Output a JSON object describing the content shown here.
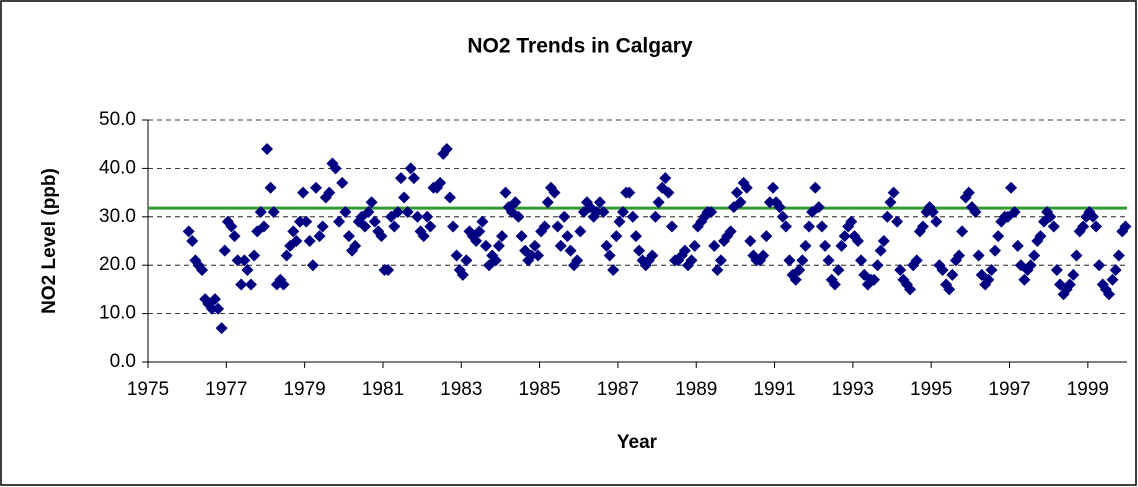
{
  "chart_data": {
    "type": "scatter",
    "title": "NO2 Trends in Calgary",
    "x_label": "Year",
    "y_label": "NO2 Level (ppb)",
    "series": [
      {
        "color": "#000080",
        "x": [
          1976.04,
          1976.13,
          1976.21,
          1976.29,
          1976.38,
          1976.46,
          1976.54,
          1976.63,
          1976.71,
          1976.79,
          1976.88,
          1976.96,
          1977.04,
          1977.13,
          1977.21,
          1977.29,
          1977.38,
          1977.46,
          1977.54,
          1977.63,
          1977.71,
          1977.79,
          1977.88,
          1977.96,
          1978.04,
          1978.13,
          1978.21,
          1978.29,
          1978.38,
          1978.46,
          1978.54,
          1978.63,
          1978.71,
          1978.79,
          1978.88,
          1978.96,
          1979.04,
          1979.13,
          1979.21,
          1979.29,
          1979.38,
          1979.46,
          1979.54,
          1979.63,
          1979.71,
          1979.79,
          1979.88,
          1979.96,
          1980.04,
          1980.13,
          1980.21,
          1980.29,
          1980.38,
          1980.46,
          1980.54,
          1980.63,
          1980.71,
          1980.79,
          1980.88,
          1980.96,
          1981.04,
          1981.13,
          1981.21,
          1981.29,
          1981.38,
          1981.46,
          1981.54,
          1981.63,
          1981.71,
          1981.79,
          1981.88,
          1981.96,
          1982.04,
          1982.13,
          1982.21,
          1982.29,
          1982.38,
          1982.46,
          1982.54,
          1982.63,
          1982.71,
          1982.79,
          1982.88,
          1982.96,
          1983.04,
          1983.13,
          1983.21,
          1983.29,
          1983.38,
          1983.46,
          1983.54,
          1983.63,
          1983.71,
          1983.79,
          1983.88,
          1983.96,
          1984.04,
          1984.13,
          1984.21,
          1984.29,
          1984.38,
          1984.46,
          1984.54,
          1984.63,
          1984.71,
          1984.79,
          1984.88,
          1984.96,
          1985.04,
          1985.13,
          1985.21,
          1985.29,
          1985.38,
          1985.46,
          1985.54,
          1985.63,
          1985.71,
          1985.79,
          1985.88,
          1985.96,
          1986.04,
          1986.13,
          1986.21,
          1986.29,
          1986.38,
          1986.46,
          1986.54,
          1986.63,
          1986.71,
          1986.79,
          1986.88,
          1986.96,
          1987.04,
          1987.13,
          1987.21,
          1987.29,
          1987.38,
          1987.46,
          1987.54,
          1987.63,
          1987.71,
          1987.79,
          1987.88,
          1987.96,
          1988.04,
          1988.13,
          1988.21,
          1988.29,
          1988.38,
          1988.46,
          1988.54,
          1988.63,
          1988.71,
          1988.79,
          1988.88,
          1988.96,
          1989.04,
          1989.13,
          1989.21,
          1989.29,
          1989.38,
          1989.46,
          1989.54,
          1989.63,
          1989.71,
          1989.79,
          1989.88,
          1989.96,
          1990.04,
          1990.13,
          1990.21,
          1990.29,
          1990.38,
          1990.46,
          1990.54,
          1990.63,
          1990.71,
          1990.79,
          1990.88,
          1990.96,
          1991.04,
          1991.13,
          1991.21,
          1991.29,
          1991.38,
          1991.46,
          1991.54,
          1991.63,
          1991.71,
          1991.79,
          1991.88,
          1991.96,
          1992.04,
          1992.13,
          1992.21,
          1992.29,
          1992.38,
          1992.46,
          1992.54,
          1992.63,
          1992.71,
          1992.79,
          1992.88,
          1992.96,
          1993.04,
          1993.13,
          1993.21,
          1993.29,
          1993.38,
          1993.46,
          1993.54,
          1993.63,
          1993.71,
          1993.79,
          1993.88,
          1993.96,
          1994.04,
          1994.13,
          1994.21,
          1994.29,
          1994.38,
          1994.46,
          1994.54,
          1994.63,
          1994.71,
          1994.79,
          1994.88,
          1994.96,
          1995.04,
          1995.13,
          1995.21,
          1995.29,
          1995.38,
          1995.46,
          1995.54,
          1995.63,
          1995.71,
          1995.79,
          1995.88,
          1995.96,
          1996.04,
          1996.13,
          1996.21,
          1996.29,
          1996.38,
          1996.46,
          1996.54,
          1996.63,
          1996.71,
          1996.79,
          1996.88,
          1996.96,
          1997.04,
          1997.13,
          1997.21,
          1997.29,
          1997.38,
          1997.46,
          1997.54,
          1997.63,
          1997.71,
          1997.79,
          1997.88,
          1997.96,
          1998.04,
          1998.13,
          1998.21,
          1998.29,
          1998.38,
          1998.46,
          1998.54,
          1998.63,
          1998.71,
          1998.79,
          1998.88,
          1998.96,
          1999.04,
          1999.13,
          1999.21,
          1999.29,
          1999.38,
          1999.46,
          1999.54,
          1999.63,
          1999.71,
          1999.79,
          1999.88,
          1999.96
        ],
        "values": [
          27,
          25,
          21,
          20,
          19,
          13,
          12,
          11,
          13,
          11,
          7,
          23,
          29,
          28,
          26,
          21,
          16,
          21,
          19,
          16,
          22,
          27,
          31,
          28,
          44,
          36,
          31,
          16,
          17,
          16,
          22,
          24,
          27,
          25,
          29,
          35,
          29,
          25,
          20,
          36,
          26,
          28,
          34,
          35,
          41,
          40,
          29,
          37,
          31,
          26,
          23,
          24,
          29,
          30,
          28,
          31,
          33,
          29,
          27,
          26,
          19,
          19,
          30,
          28,
          31,
          38,
          34,
          31,
          40,
          38,
          30,
          27,
          26,
          30,
          28,
          36,
          36,
          37,
          43,
          44,
          34,
          28,
          22,
          19,
          18,
          21,
          27,
          26,
          25,
          27,
          29,
          24,
          20,
          22,
          21,
          24,
          26,
          35,
          32,
          31,
          33,
          30,
          26,
          23,
          21,
          22,
          24,
          22,
          27,
          28,
          33,
          36,
          35,
          28,
          24,
          30,
          26,
          23,
          20,
          21,
          27,
          31,
          33,
          32,
          30,
          31,
          33,
          31,
          24,
          22,
          19,
          26,
          29,
          31,
          35,
          35,
          30,
          26,
          23,
          21,
          20,
          21,
          22,
          30,
          33,
          36,
          38,
          35,
          28,
          21,
          21,
          22,
          23,
          20,
          21,
          24,
          28,
          29,
          30,
          31,
          31,
          24,
          19,
          21,
          25,
          26,
          27,
          32,
          35,
          33,
          37,
          36,
          25,
          22,
          21,
          21,
          22,
          26,
          33,
          36,
          33,
          32,
          30,
          28,
          21,
          18,
          17,
          19,
          21,
          24,
          28,
          31,
          36,
          32,
          28,
          24,
          21,
          17,
          16,
          19,
          24,
          26,
          28,
          29,
          26,
          25,
          21,
          18,
          16,
          17,
          17,
          20,
          23,
          25,
          30,
          33,
          35,
          29,
          19,
          17,
          16,
          15,
          20,
          21,
          27,
          28,
          31,
          32,
          31,
          29,
          20,
          19,
          16,
          15,
          18,
          21,
          22,
          27,
          34,
          35,
          32,
          31,
          22,
          18,
          16,
          17,
          19,
          23,
          26,
          29,
          30,
          30,
          36,
          31,
          24,
          20,
          17,
          19,
          20,
          22,
          25,
          26,
          29,
          31,
          30,
          28,
          19,
          16,
          14,
          15,
          16,
          18,
          22,
          27,
          28,
          30,
          31,
          30,
          28,
          20,
          16,
          15,
          14,
          17,
          19,
          22,
          27,
          28
        ]
      }
    ],
    "reference_line": {
      "value": 31.8,
      "color": "#339933"
    },
    "xlim": [
      1975,
      2000
    ],
    "xticks": [
      1975,
      1977,
      1979,
      1981,
      1983,
      1985,
      1987,
      1989,
      1991,
      1993,
      1995,
      1997,
      1999
    ],
    "ylim": [
      0,
      50
    ],
    "yticks": [
      {
        "value": 0,
        "label": "0.0"
      },
      {
        "value": 10,
        "label": "10.0"
      },
      {
        "value": 20,
        "label": "20.0"
      },
      {
        "value": 30,
        "label": "30.0"
      },
      {
        "value": 40,
        "label": "40.0"
      },
      {
        "value": 50,
        "label": "50.0"
      }
    ],
    "grid": true
  }
}
